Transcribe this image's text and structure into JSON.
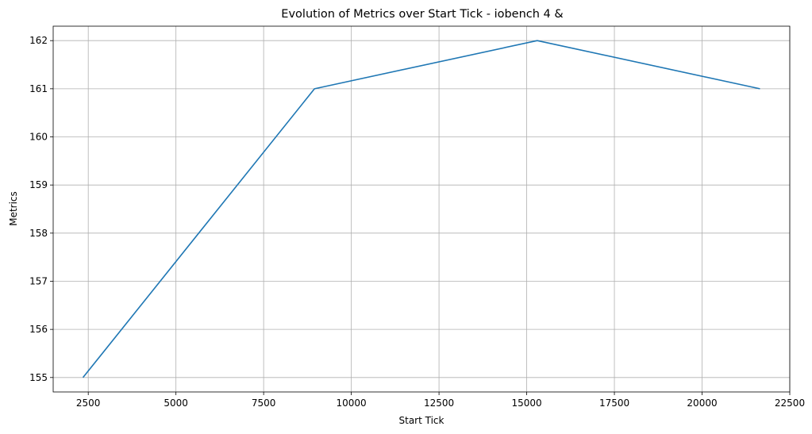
{
  "chart_data": {
    "type": "line",
    "title": "Evolution of Metrics over Start Tick - iobench 4 &",
    "xlabel": "Start Tick",
    "ylabel": "Metrics",
    "xlim": [
      1500,
      22500
    ],
    "ylim": [
      154.7,
      162.3
    ],
    "xticks": [
      2500,
      5000,
      7500,
      10000,
      12500,
      15000,
      17500,
      20000,
      22500
    ],
    "yticks": [
      155,
      156,
      157,
      158,
      159,
      160,
      161,
      162
    ],
    "grid": true,
    "series": [
      {
        "color": "#1f77b4",
        "x": [
          2350,
          8950,
          15300,
          21650
        ],
        "y": [
          155,
          161,
          162,
          161
        ]
      }
    ]
  }
}
